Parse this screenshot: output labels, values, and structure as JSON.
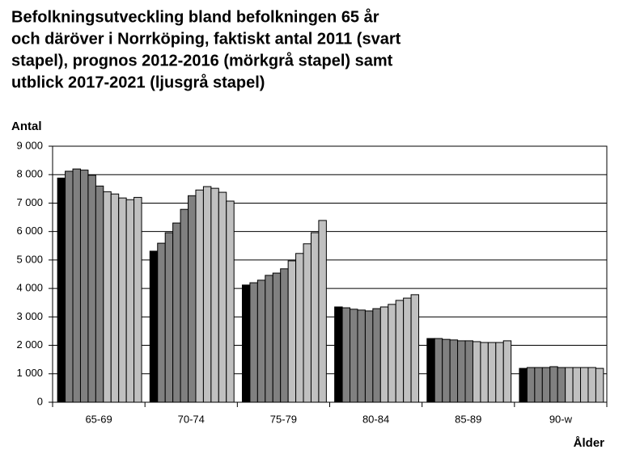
{
  "chart_data": {
    "type": "bar",
    "title": [
      "Befolkningsutveckling bland befolkningen 65 år",
      "och däröver i Norrköping, faktiskt antal 2011 (svart",
      "stapel), prognos 2012-2016 (mörkgrå stapel) samt",
      "utblick 2017-2021 (ljusgrå stapel)"
    ],
    "y_label": "Antal",
    "x_label": "Ålder",
    "categories": [
      "65-69",
      "70-74",
      "75-79",
      "80-84",
      "85-89",
      "90-w"
    ],
    "series": [
      {
        "color": "#000000",
        "values": [
          7880,
          5310,
          4120,
          3350,
          2240,
          1190
        ]
      },
      {
        "color": "#808080",
        "values": [
          8120,
          5590,
          4200,
          3320,
          2240,
          1220
        ]
      },
      {
        "color": "#808080",
        "values": [
          8200,
          5960,
          4290,
          3270,
          2210,
          1220
        ]
      },
      {
        "color": "#808080",
        "values": [
          8160,
          6300,
          4460,
          3240,
          2190,
          1220
        ]
      },
      {
        "color": "#808080",
        "values": [
          7980,
          6780,
          4540,
          3210,
          2160,
          1250
        ]
      },
      {
        "color": "#808080",
        "values": [
          7600,
          7260,
          4690,
          3290,
          2160,
          1220
        ]
      },
      {
        "color": "#c0c0c0",
        "values": [
          7400,
          7460,
          4970,
          3350,
          2130,
          1220
        ]
      },
      {
        "color": "#c0c0c0",
        "values": [
          7320,
          7580,
          5230,
          3440,
          2100,
          1220
        ]
      },
      {
        "color": "#c0c0c0",
        "values": [
          7180,
          7520,
          5570,
          3580,
          2100,
          1220
        ]
      },
      {
        "color": "#c0c0c0",
        "values": [
          7120,
          7380,
          5960,
          3660,
          2100,
          1220
        ]
      },
      {
        "color": "#c0c0c0",
        "values": [
          7200,
          7070,
          6390,
          3780,
          2160,
          1190
        ]
      }
    ],
    "ylim": [
      0,
      9000
    ],
    "yticks": [
      0,
      {
        "value": 1000,
        "label": "1 000"
      },
      {
        "value": 2000,
        "label": "2 000"
      },
      {
        "value": 3000,
        "label": "3 000"
      },
      {
        "value": 4000,
        "label": "4 000"
      },
      {
        "value": 5000,
        "label": "5 000"
      },
      {
        "value": 6000,
        "label": "6 000"
      },
      {
        "value": 7000,
        "label": "7 000"
      },
      {
        "value": 8000,
        "label": "8 000"
      },
      {
        "value": 9000,
        "label": "9 000"
      }
    ],
    "grid": true
  }
}
